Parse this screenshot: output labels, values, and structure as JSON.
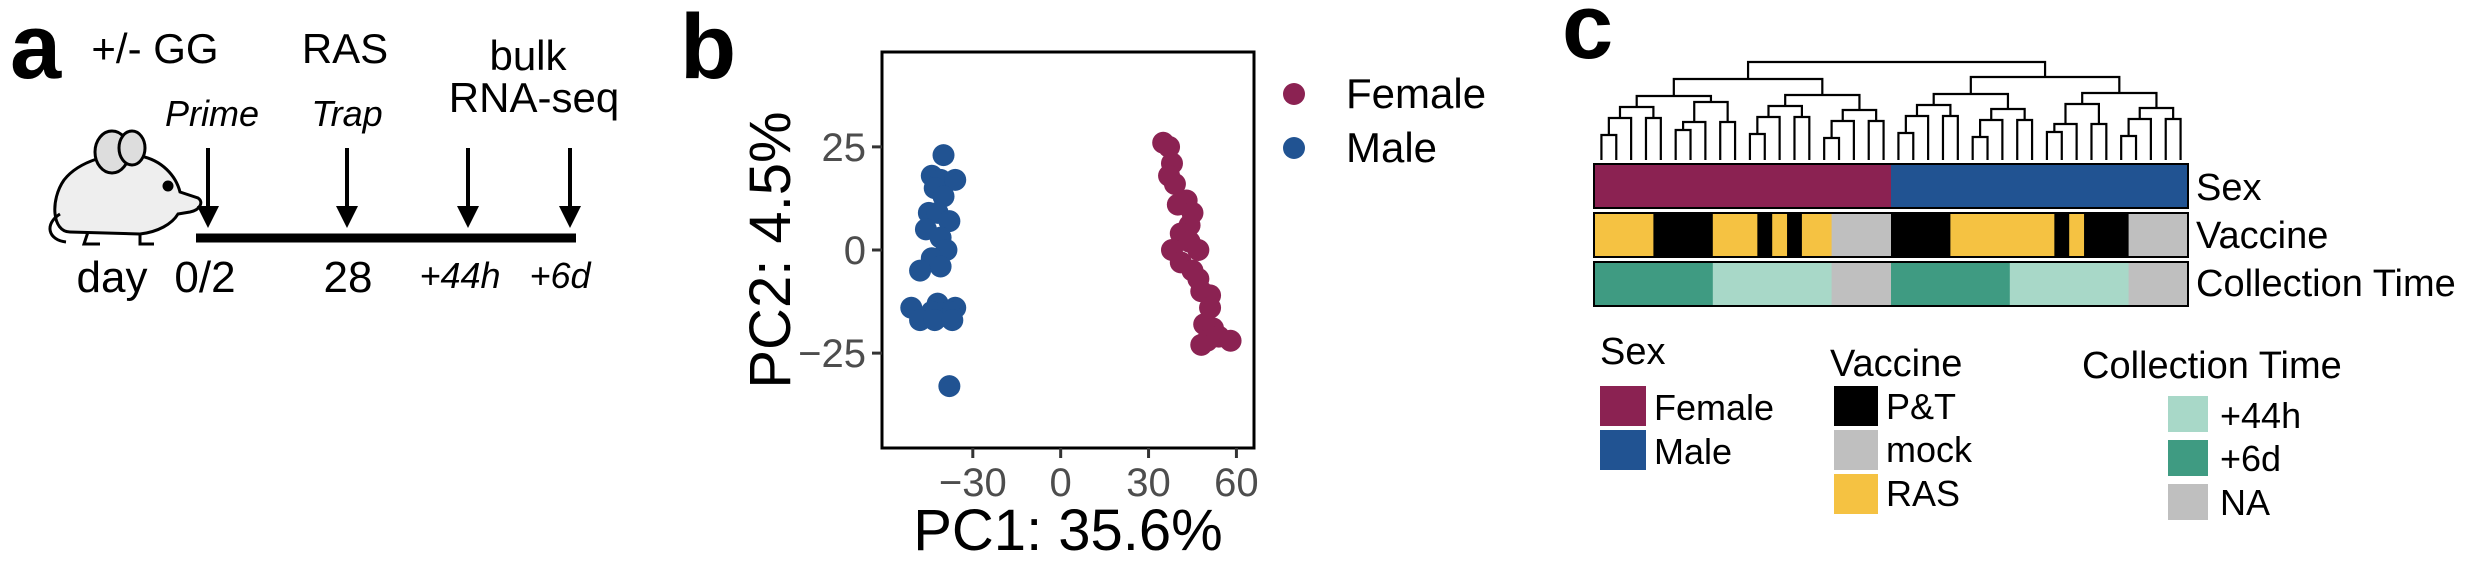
{
  "panel_a": {
    "letter": "a",
    "day_label": "day",
    "events": [
      {
        "top": "+/- GG",
        "sub": "Prime",
        "day": "0/2"
      },
      {
        "top": "RAS",
        "sub": "Trap",
        "day": "28"
      },
      {
        "top": "bulk",
        "top2": "RNA-seq",
        "sub": "",
        "day": "+44h"
      },
      {
        "top": "",
        "sub": "",
        "day": "+6d"
      }
    ]
  },
  "panel_b": {
    "letter": "b"
  },
  "panel_c": {
    "letter": "c",
    "rows": [
      "Sex",
      "Vaccine",
      "Collection Time"
    ],
    "legends": {
      "sex": {
        "title": "Sex",
        "items": [
          {
            "label": "Female",
            "color": "#8b2252"
          },
          {
            "label": "Male",
            "color": "#215392"
          }
        ]
      },
      "vaccine": {
        "title": "Vaccine",
        "items": [
          {
            "label": "P&T",
            "color": "#000000"
          },
          {
            "label": "mock",
            "color": "#bfbfbf"
          },
          {
            "label": "RAS",
            "color": "#f5c242"
          }
        ]
      },
      "collection": {
        "title": "Collection Time",
        "items": [
          {
            "label": "+44h",
            "color": "#a8d8c8"
          },
          {
            "label": "+6d",
            "color": "#3f9b82"
          },
          {
            "label": "NA",
            "color": "#bfbfbf"
          }
        ]
      }
    },
    "heatmap_tracks": {
      "n_samples": 40,
      "sex": [
        "Female",
        "Female",
        "Female",
        "Female",
        "Female",
        "Female",
        "Female",
        "Female",
        "Female",
        "Female",
        "Female",
        "Female",
        "Female",
        "Female",
        "Female",
        "Female",
        "Female",
        "Female",
        "Female",
        "Female",
        "Male",
        "Male",
        "Male",
        "Male",
        "Male",
        "Male",
        "Male",
        "Male",
        "Male",
        "Male",
        "Male",
        "Male",
        "Male",
        "Male",
        "Male",
        "Male",
        "Male",
        "Male",
        "Male",
        "Male"
      ],
      "vaccine": [
        "RAS",
        "RAS",
        "RAS",
        "RAS",
        "P&T",
        "P&T",
        "P&T",
        "P&T",
        "RAS",
        "RAS",
        "RAS",
        "P&T",
        "RAS",
        "P&T",
        "RAS",
        "RAS",
        "mock",
        "mock",
        "mock",
        "mock",
        "P&T",
        "P&T",
        "P&T",
        "P&T",
        "RAS",
        "RAS",
        "RAS",
        "RAS",
        "RAS",
        "RAS",
        "RAS",
        "P&T",
        "RAS",
        "P&T",
        "P&T",
        "P&T",
        "mock",
        "mock",
        "mock",
        "mock"
      ],
      "collection": [
        "+6d",
        "+6d",
        "+6d",
        "+6d",
        "+6d",
        "+6d",
        "+6d",
        "+6d",
        "+44h",
        "+44h",
        "+44h",
        "+44h",
        "+44h",
        "+44h",
        "+44h",
        "+44h",
        "NA",
        "NA",
        "NA",
        "NA",
        "+6d",
        "+6d",
        "+6d",
        "+6d",
        "+6d",
        "+6d",
        "+6d",
        "+6d",
        "+44h",
        "+44h",
        "+44h",
        "+44h",
        "+44h",
        "+44h",
        "+44h",
        "+44h",
        "NA",
        "NA",
        "NA",
        "NA"
      ]
    }
  },
  "chart_data": {
    "type": "scatter",
    "title": "",
    "xlabel": "PC1: 35.6%",
    "ylabel": "PC2: 4.5%",
    "xlim": [
      -61,
      66
    ],
    "ylim": [
      -48,
      48
    ],
    "x_ticks": [
      -30,
      0,
      30,
      60
    ],
    "x_tick_labels": [
      "−30",
      "0",
      "30",
      "60"
    ],
    "y_ticks": [
      -25,
      0,
      25
    ],
    "y_tick_labels": [
      "−25",
      "0",
      "25"
    ],
    "legend_position": "right",
    "grid": false,
    "series": [
      {
        "name": "Female",
        "color": "#8b2252",
        "points": [
          [
            35,
            26
          ],
          [
            37,
            25
          ],
          [
            38,
            21
          ],
          [
            37,
            18
          ],
          [
            39,
            16
          ],
          [
            40,
            11
          ],
          [
            43,
            12
          ],
          [
            45,
            9
          ],
          [
            44,
            6
          ],
          [
            41,
            4
          ],
          [
            44,
            2
          ],
          [
            38,
            0
          ],
          [
            47,
            0
          ],
          [
            41,
            -3
          ],
          [
            45,
            -5
          ],
          [
            47,
            -7
          ],
          [
            48,
            -10
          ],
          [
            51,
            -11
          ],
          [
            51,
            -14
          ],
          [
            49,
            -18
          ],
          [
            52,
            -19
          ],
          [
            54,
            -21
          ],
          [
            50,
            -22
          ],
          [
            58,
            -22
          ],
          [
            48,
            -23
          ]
        ]
      },
      {
        "name": "Male",
        "color": "#215392",
        "points": [
          [
            -40,
            23
          ],
          [
            -44,
            18
          ],
          [
            -41,
            17
          ],
          [
            -36,
            17
          ],
          [
            -43,
            15
          ],
          [
            -40,
            13
          ],
          [
            -45,
            9
          ],
          [
            -42,
            9
          ],
          [
            -38,
            7
          ],
          [
            -46,
            5
          ],
          [
            -41,
            3
          ],
          [
            -39,
            0
          ],
          [
            -44,
            -2
          ],
          [
            -41,
            -4
          ],
          [
            -48,
            -5
          ],
          [
            -42,
            -13
          ],
          [
            -36,
            -14
          ],
          [
            -51,
            -14
          ],
          [
            -38,
            -15
          ],
          [
            -44,
            -15
          ],
          [
            -48,
            -17
          ],
          [
            -43,
            -17
          ],
          [
            -37,
            -17
          ],
          [
            -38,
            -33
          ]
        ]
      }
    ]
  }
}
